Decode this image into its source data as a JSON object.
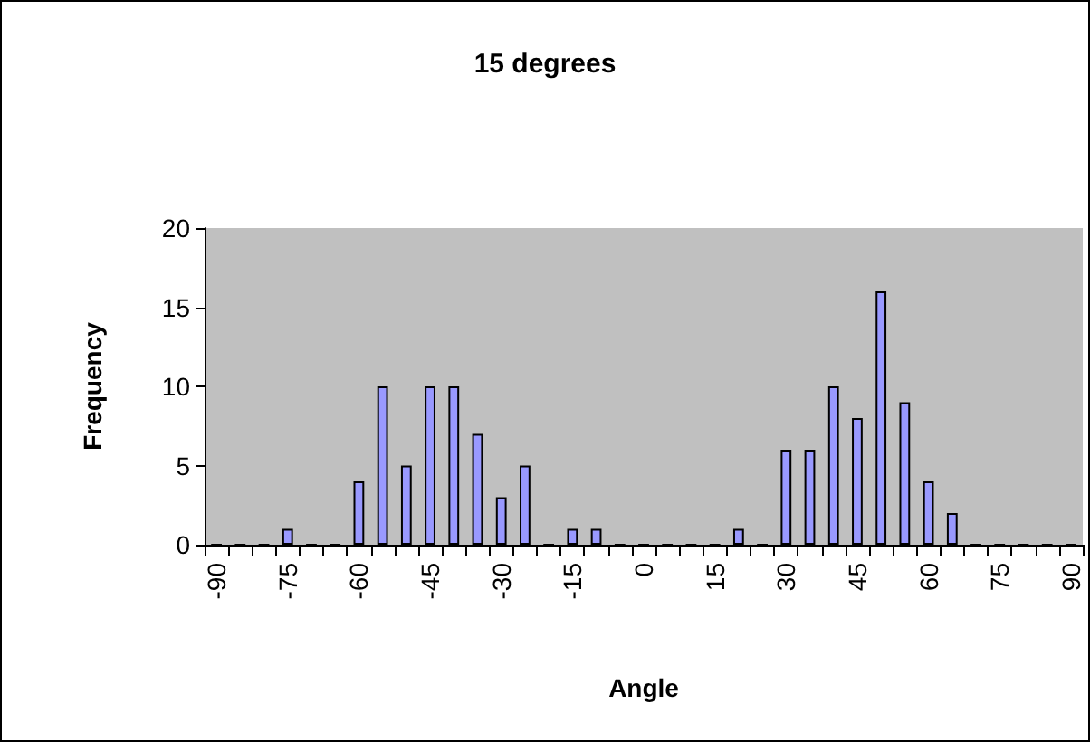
{
  "chart_data": {
    "type": "bar",
    "title": "15 degrees",
    "xlabel": "Angle",
    "ylabel": "Frequency",
    "categories": [
      "-90",
      null,
      null,
      "-75",
      null,
      null,
      "-60",
      null,
      null,
      "-45",
      null,
      null,
      "-30",
      null,
      null,
      "-15",
      null,
      null,
      "0",
      null,
      null,
      "15",
      null,
      null,
      "30",
      null,
      null,
      "45",
      null,
      null,
      "60",
      null,
      null,
      "75",
      null,
      null,
      "90"
    ],
    "values": [
      0,
      0,
      0,
      1,
      0,
      0,
      4,
      10,
      5,
      10,
      10,
      7,
      3,
      5,
      0,
      1,
      1,
      0,
      0,
      0,
      0,
      0,
      1,
      0,
      6,
      6,
      10,
      8,
      16,
      9,
      4,
      2,
      0,
      0,
      0,
      0,
      0
    ],
    "color": "#9999ff",
    "ylim": [
      0,
      20
    ],
    "yticks": [
      0,
      5,
      10,
      15,
      20
    ],
    "grid": false
  }
}
